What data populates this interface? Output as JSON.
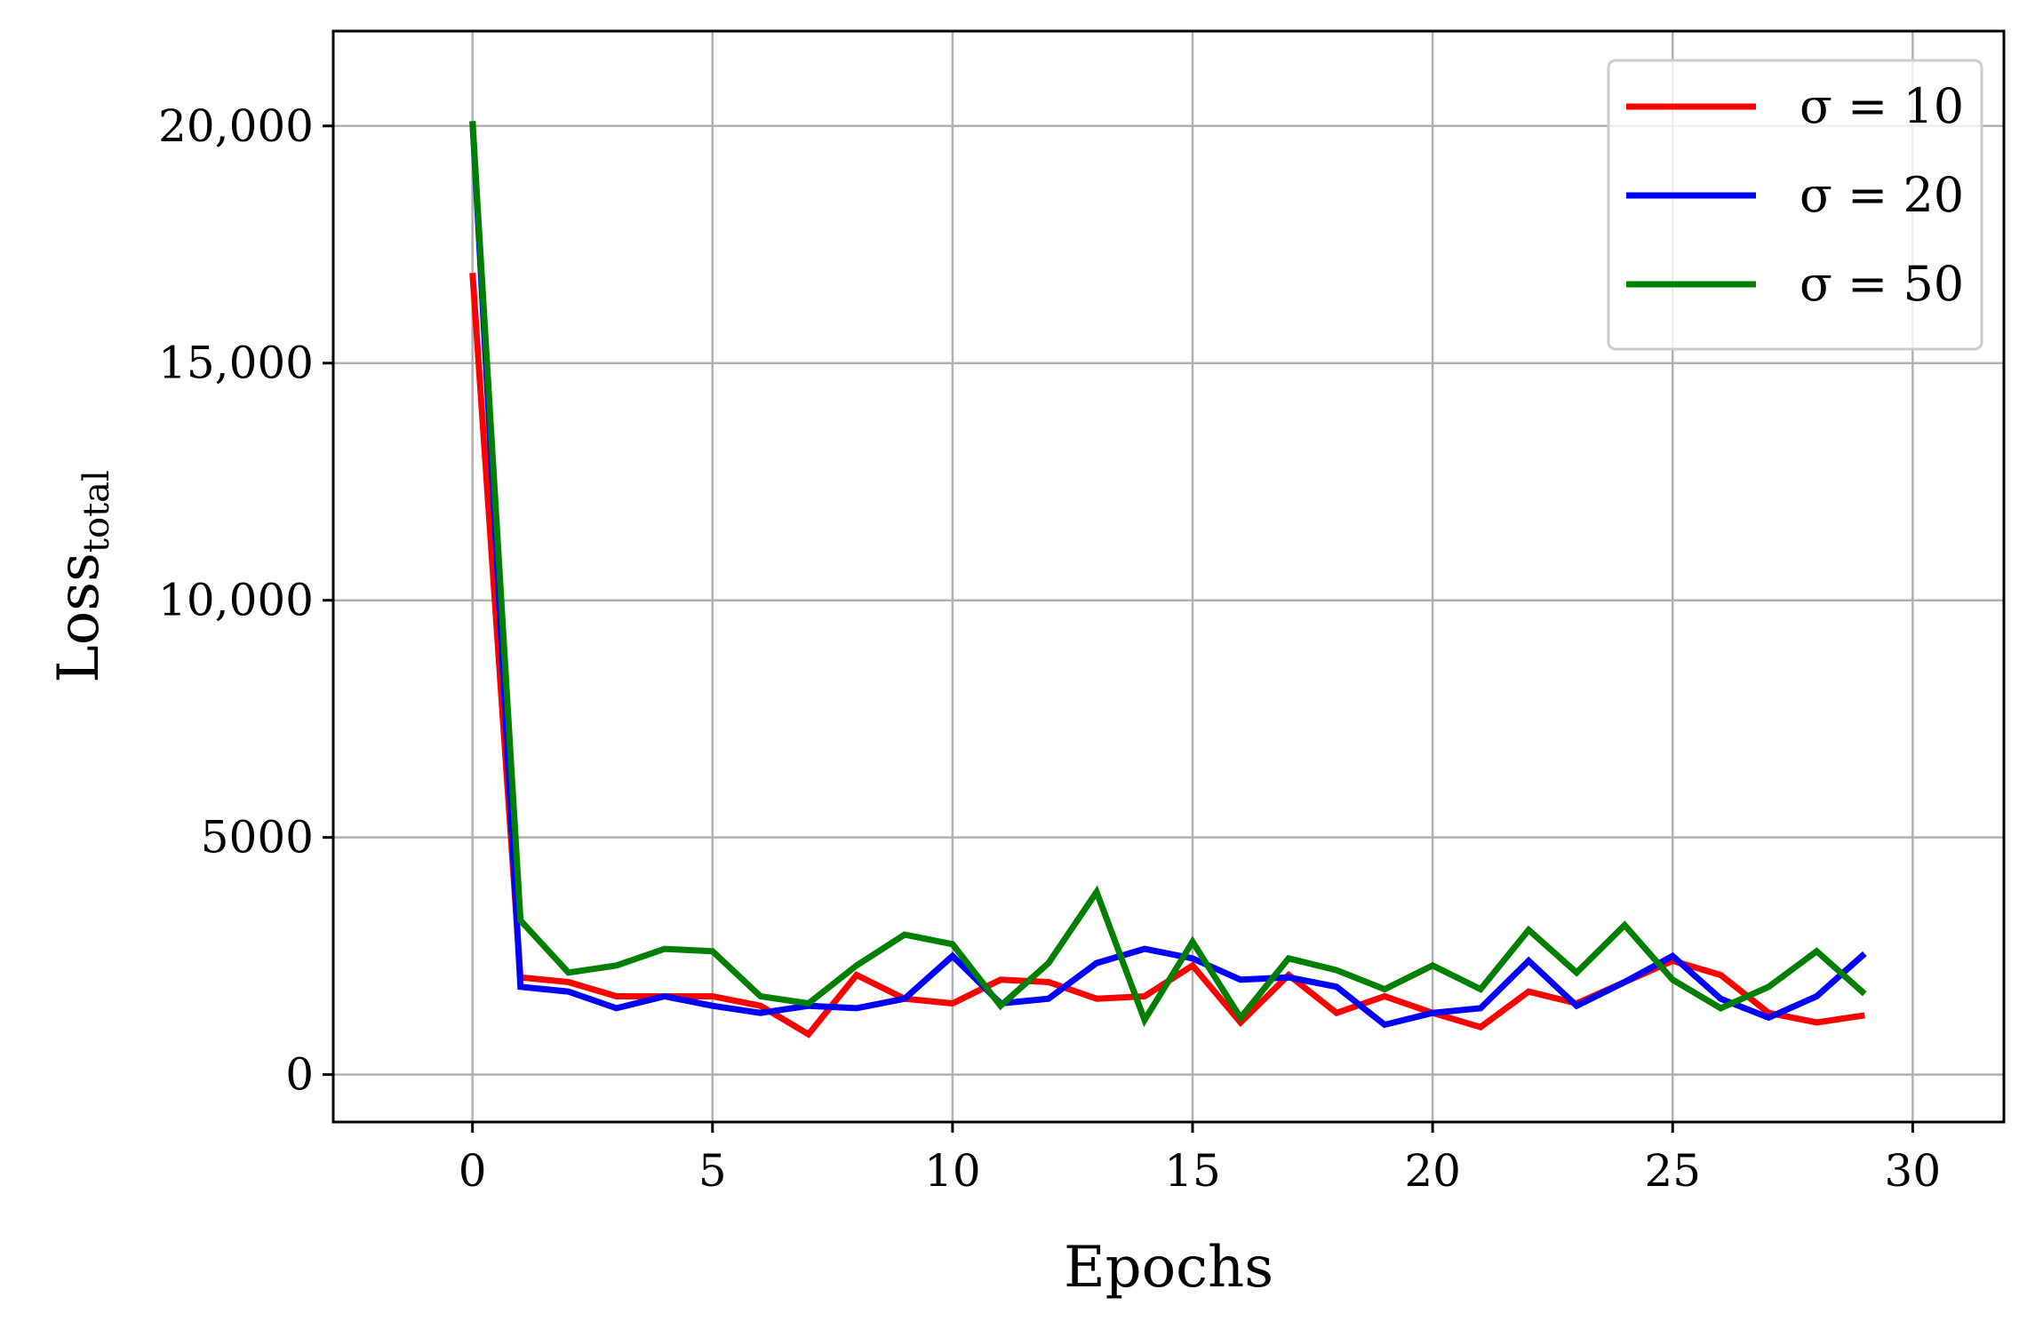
{
  "chart_data": {
    "type": "line",
    "xlabel": "Epochs",
    "ylabel": {
      "main": "Loss",
      "subscript": "total"
    },
    "xlim": [
      -2.9,
      31.9
    ],
    "ylim": [
      -1000,
      22000
    ],
    "xticks": [
      0,
      5,
      10,
      15,
      20,
      25,
      30
    ],
    "xtick_labels": [
      "0",
      "5",
      "10",
      "15",
      "20",
      "25",
      "30"
    ],
    "yticks": [
      0,
      5000,
      10000,
      15000,
      20000
    ],
    "ytick_labels": [
      "0",
      "5000",
      "10,000",
      "15,000",
      "20,000"
    ],
    "grid": true,
    "legend_position": "top-right",
    "x": [
      0,
      1,
      2,
      3,
      4,
      5,
      6,
      7,
      8,
      9,
      10,
      11,
      12,
      13,
      14,
      15,
      16,
      17,
      18,
      19,
      20,
      21,
      22,
      23,
      24,
      25,
      26,
      27,
      28,
      29
    ],
    "series": [
      {
        "name": "σ = 10",
        "color": "#ff0000",
        "values": [
          16900,
          2050,
          1950,
          1650,
          1650,
          1650,
          1450,
          850,
          2100,
          1600,
          1500,
          2000,
          1950,
          1600,
          1650,
          2300,
          1100,
          2100,
          1300,
          1650,
          1300,
          1000,
          1750,
          1500,
          1950,
          2400,
          2100,
          1300,
          1100,
          1250
        ]
      },
      {
        "name": "σ = 20",
        "color": "#0000ff",
        "values": [
          20100,
          1850,
          1750,
          1400,
          1650,
          1450,
          1300,
          1450,
          1400,
          1600,
          2500,
          1500,
          1600,
          2350,
          2650,
          2450,
          2000,
          2050,
          1850,
          1050,
          1300,
          1400,
          2400,
          1450,
          1950,
          2500,
          1600,
          1200,
          1650,
          2550
        ]
      },
      {
        "name": "σ = 50",
        "color": "#007f00",
        "values": [
          20100,
          3250,
          2150,
          2300,
          2650,
          2600,
          1650,
          1500,
          2300,
          2950,
          2750,
          1450,
          2350,
          3850,
          1150,
          2800,
          1200,
          2450,
          2200,
          1800,
          2300,
          1800,
          3050,
          2150,
          3150,
          2000,
          1400,
          1850,
          2600,
          1700
        ]
      }
    ]
  }
}
